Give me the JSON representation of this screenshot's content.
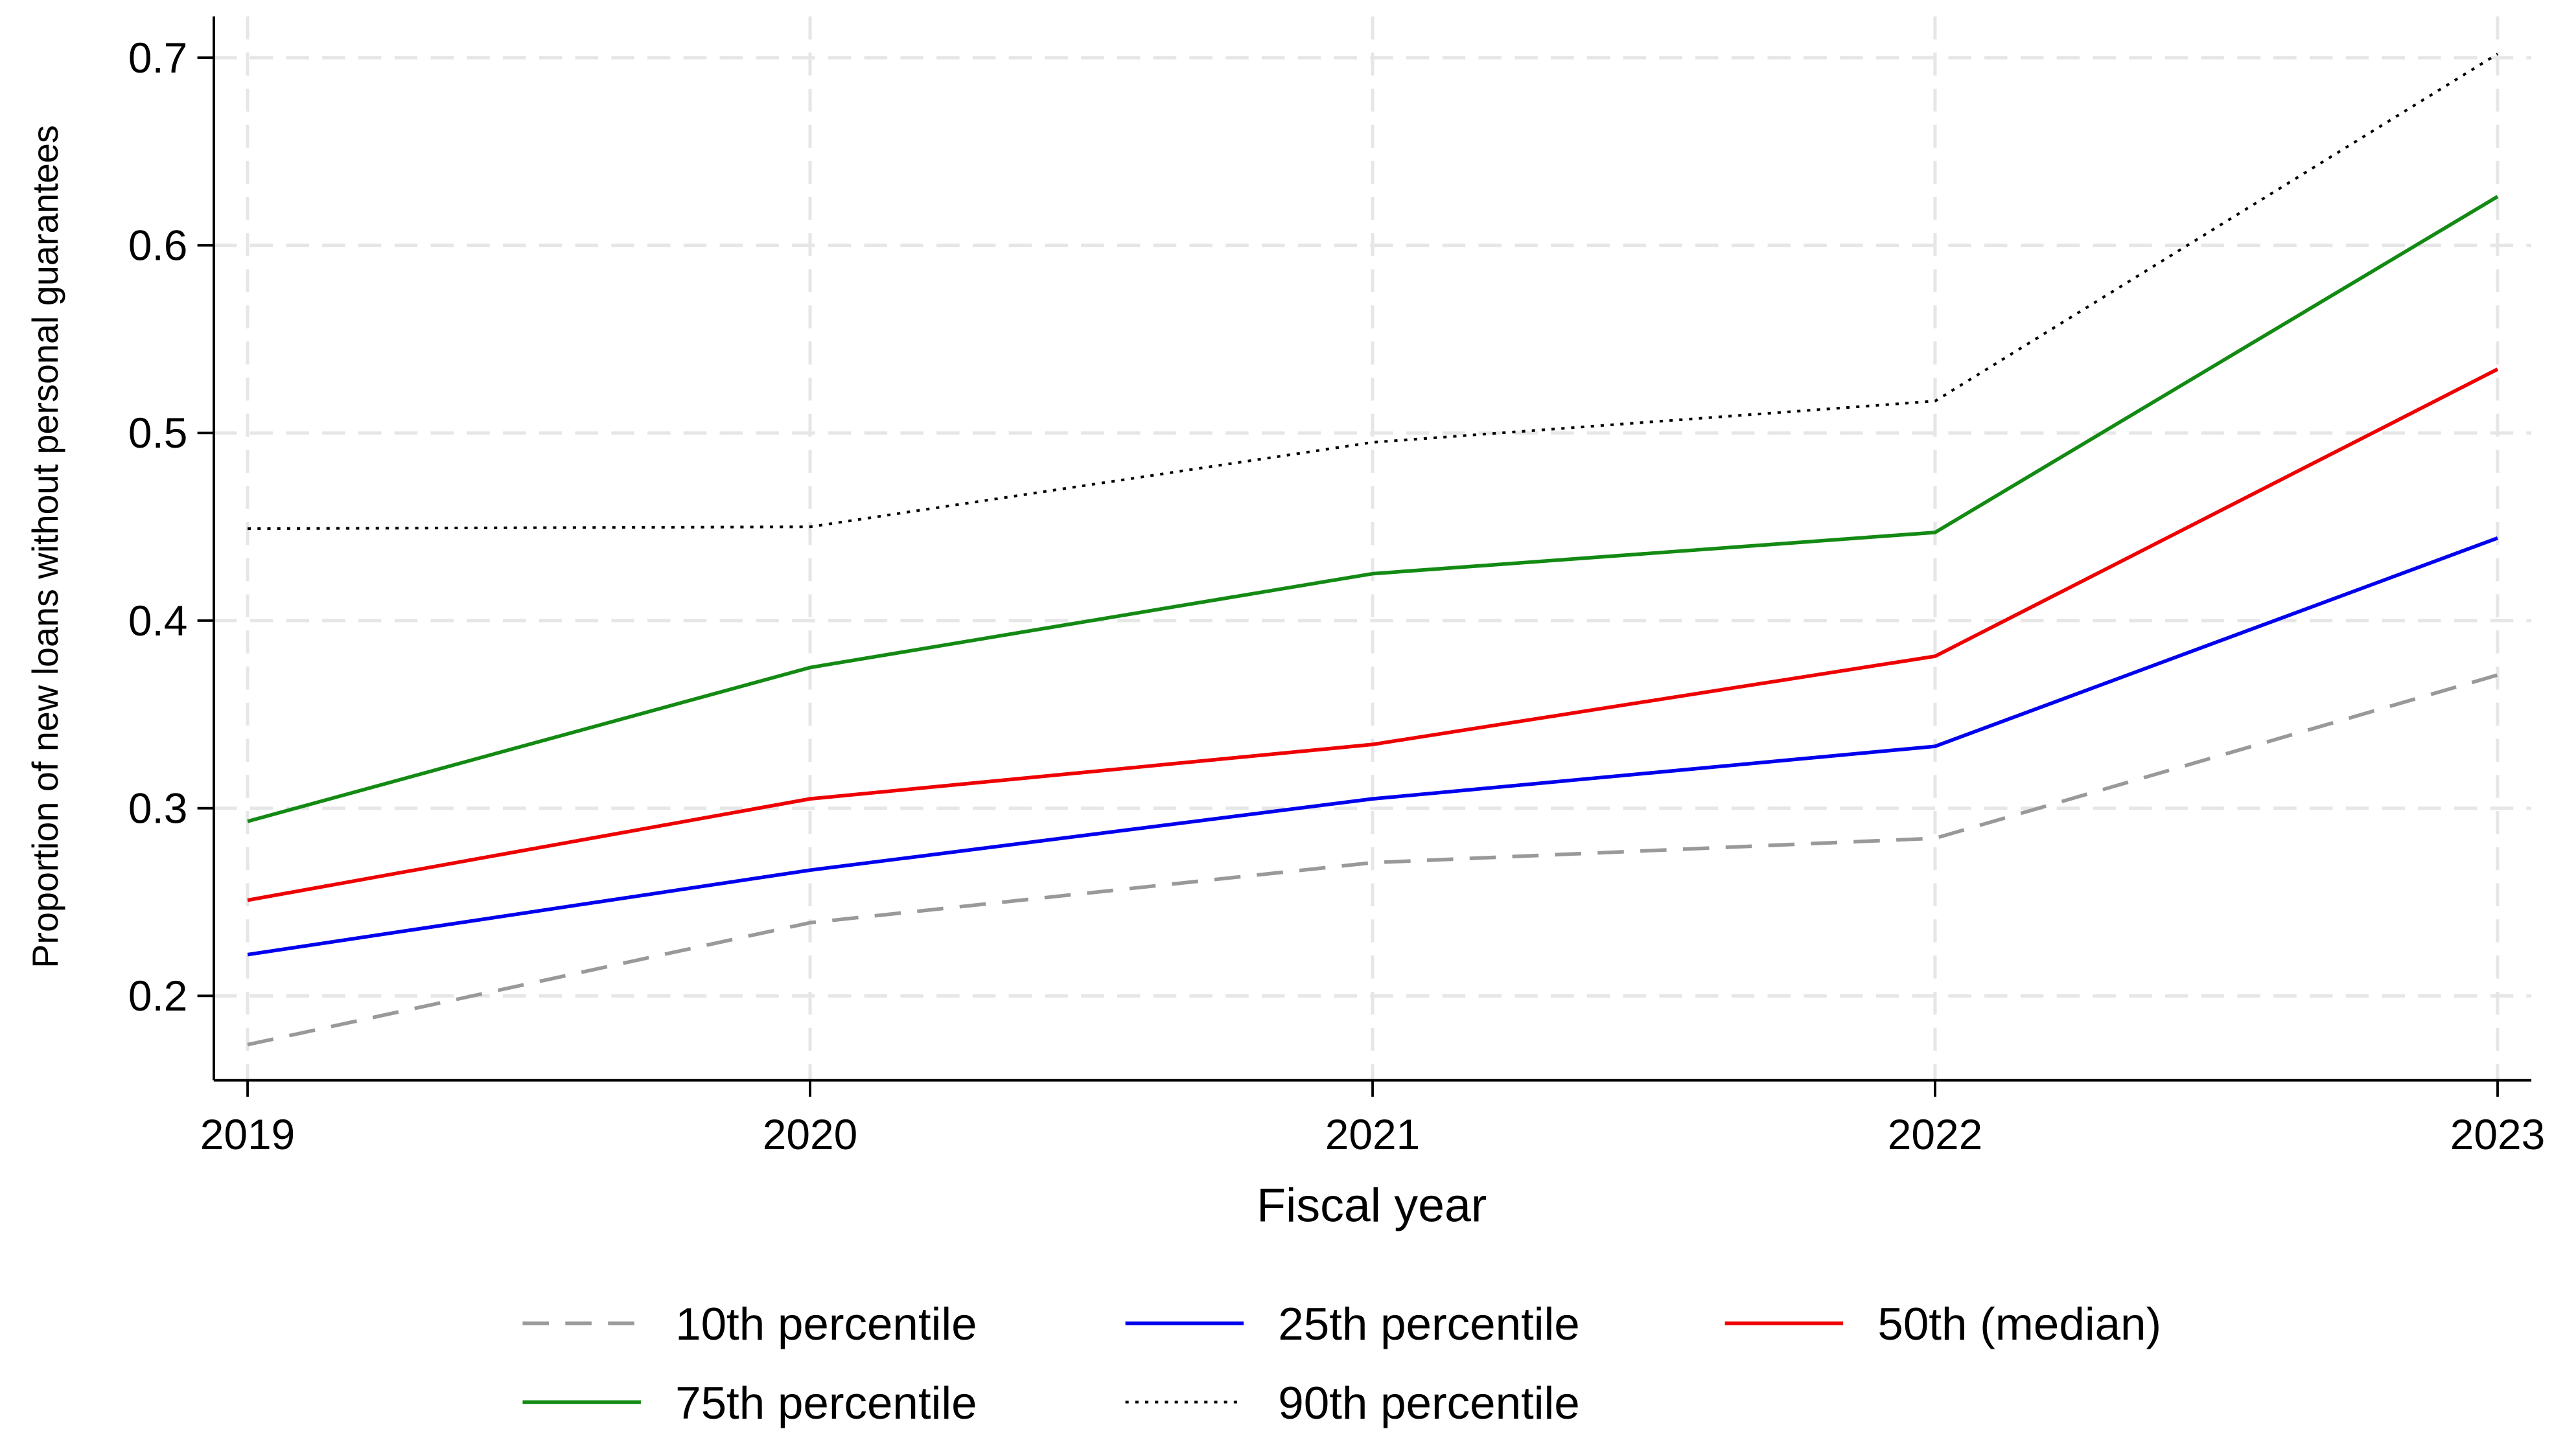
{
  "chart_data": {
    "type": "line",
    "x_label": "Fiscal year",
    "y_label": "Proportion of new loans without personal guarantees",
    "x": [
      2019,
      2020,
      2021,
      2022,
      2023
    ],
    "xlim": [
      2018.94,
      2023.06
    ],
    "xticks": [
      2019,
      2020,
      2021,
      2022,
      2023
    ],
    "ylim": [
      0.155,
      0.722
    ],
    "yticks": [
      0.2,
      0.3,
      0.4,
      0.5,
      0.6,
      0.7
    ],
    "grid": true,
    "legend": "bottom",
    "series": [
      {
        "name": "10th percentile",
        "color": "#999999",
        "dash": "dashed",
        "values": [
          0.174,
          0.239,
          0.271,
          0.284,
          0.371
        ]
      },
      {
        "name": "25th percentile",
        "color": "#0000ee",
        "dash": "solid",
        "values": [
          0.222,
          0.267,
          0.305,
          0.333,
          0.444
        ]
      },
      {
        "name": "50th (median)",
        "color": "#ee0000",
        "dash": "solid",
        "values": [
          0.251,
          0.305,
          0.334,
          0.381,
          0.534
        ]
      },
      {
        "name": "75th percentile",
        "color": "#138a13",
        "dash": "solid",
        "values": [
          0.293,
          0.375,
          0.425,
          0.447,
          0.626
        ]
      },
      {
        "name": "90th percentile",
        "color": "#000000",
        "dash": "dotted",
        "values": [
          0.449,
          0.45,
          0.495,
          0.517,
          0.702
        ]
      }
    ]
  }
}
